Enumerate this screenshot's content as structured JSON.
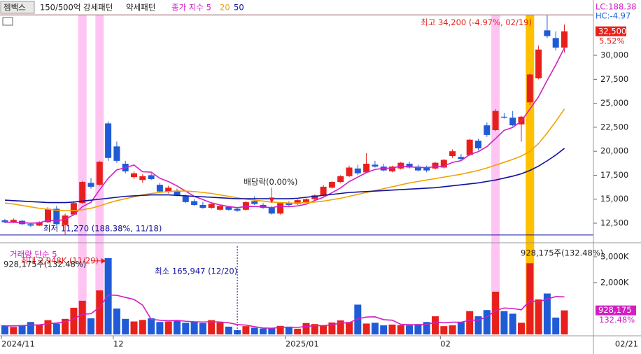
{
  "chart_data": {
    "type": "candlestick",
    "header": {
      "name": "젬백스",
      "pattern1": "150/500억 강세패턴",
      "pattern2": "약세패턴",
      "lc": "LC:188.38",
      "hc": "HC:-4.97"
    },
    "ma_series": [
      {
        "name": "종가 지수 5",
        "color": "#d21fc3",
        "values": [
          12600,
          12600,
          12550,
          12500,
          12540,
          12820,
          12730,
          12910,
          13380,
          14220,
          14680,
          15980,
          17180,
          18060,
          18280,
          18560,
          17860,
          17820,
          17180,
          16840,
          16380,
          15840,
          15300,
          14960,
          14620,
          14400,
          14240,
          14120,
          14240,
          14240,
          14200,
          14120,
          14280,
          14220,
          14300,
          14480,
          14860,
          15200,
          15680,
          16180,
          16840,
          17300,
          17780,
          18100,
          18220,
          18240,
          18460,
          18380,
          18300,
          18300,
          18380,
          18440,
          18840,
          19020,
          19660,
          19960,
          20480,
          21320,
          22180,
          22480,
          23140,
          24400,
          25680,
          27380,
          29000,
          30780
        ]
      },
      {
        "name": "20",
        "color": "#f0a400",
        "values": [
          14600,
          14500,
          14350,
          14200,
          14050,
          13950,
          13850,
          13800,
          13800,
          13900,
          14050,
          14300,
          14600,
          14850,
          15050,
          15250,
          15450,
          15600,
          15700,
          15800,
          15850,
          15850,
          15800,
          15700,
          15600,
          15450,
          15300,
          15150,
          15000,
          14900,
          14800,
          14700,
          14650,
          14600,
          14600,
          14650,
          14700,
          14800,
          14950,
          15100,
          15300,
          15500,
          15700,
          15900,
          16100,
          16300,
          16500,
          16700,
          16850,
          17000,
          17150,
          17300,
          17450,
          17600,
          17800,
          18000,
          18250,
          18550,
          18850,
          19150,
          19500,
          20000,
          20800,
          21900,
          23100,
          24400
        ]
      },
      {
        "name": "50",
        "color": "#10109e",
        "values": [
          14900,
          14850,
          14800,
          14750,
          14700,
          14650,
          14650,
          14650,
          14700,
          14800,
          14900,
          15000,
          15100,
          15200,
          15300,
          15350,
          15400,
          15450,
          15450,
          15450,
          15400,
          15350,
          15300,
          15250,
          15200,
          15150,
          15100,
          15050,
          15050,
          15050,
          15050,
          15050,
          15050,
          15050,
          15100,
          15200,
          15300,
          15400,
          15500,
          15600,
          15700,
          15750,
          15800,
          15850,
          15900,
          15950,
          16000,
          16050,
          16100,
          16150,
          16200,
          16300,
          16400,
          16500,
          16600,
          16700,
          16850,
          17000,
          17200,
          17400,
          17650,
          18000,
          18450,
          19000,
          19600,
          20300
        ]
      }
    ],
    "categories": [
      "2024/11",
      null,
      null,
      null,
      null,
      null,
      null,
      null,
      null,
      null,
      null,
      null,
      null,
      "12",
      null,
      null,
      null,
      null,
      null,
      null,
      null,
      null,
      null,
      null,
      null,
      null,
      null,
      null,
      null,
      null,
      null,
      null,
      null,
      "2025/01",
      null,
      null,
      null,
      null,
      null,
      null,
      null,
      null,
      null,
      null,
      null,
      null,
      null,
      null,
      null,
      null,
      null,
      "02",
      null,
      null,
      null,
      null,
      null,
      null,
      null,
      null,
      null,
      null,
      null,
      null,
      null,
      null
    ],
    "date_label": "02/21",
    "open": [
      12800,
      12600,
      12750,
      12400,
      12250,
      12600,
      14000,
      12300,
      13400,
      14600,
      16700,
      16500,
      22900,
      20500,
      18700,
      17300,
      17000,
      17500,
      16500,
      15800,
      15900,
      15300,
      14800,
      14400,
      14100,
      13900,
      14200,
      14000,
      13900,
      14800,
      14400,
      14100,
      13500,
      14600,
      14500,
      14700,
      15000,
      15400,
      16200,
      16800,
      17400,
      18200,
      17800,
      18600,
      18400,
      17900,
      18200,
      18700,
      18400,
      18300,
      18200,
      18300,
      19500,
      19400,
      19600,
      21100,
      22700,
      22200,
      23600,
      23500,
      22800,
      25100,
      27600,
      32600,
      31800,
      30800
    ],
    "high": [
      12950,
      13000,
      12850,
      12550,
      12700,
      14200,
      14300,
      13500,
      14800,
      16900,
      17200,
      19000,
      23100,
      21000,
      19000,
      17900,
      17600,
      17700,
      16700,
      16400,
      16100,
      15500,
      15000,
      14700,
      14600,
      14400,
      14300,
      14200,
      14800,
      15300,
      14600,
      14300,
      14700,
      14800,
      15000,
      15100,
      15500,
      16500,
      16900,
      17500,
      18500,
      18600,
      19800,
      19000,
      18700,
      18500,
      18900,
      18900,
      18600,
      18500,
      18900,
      19200,
      20200,
      19700,
      21300,
      21300,
      23000,
      24400,
      24000,
      24200,
      23700,
      28100,
      31000,
      34200,
      32500,
      33200
    ],
    "low": [
      12500,
      12500,
      12300,
      12100,
      12200,
      12500,
      12300,
      11270,
      13300,
      14500,
      16100,
      16400,
      19000,
      18800,
      17700,
      17100,
      16700,
      17000,
      15700,
      15600,
      15300,
      14600,
      14300,
      14000,
      14000,
      13800,
      13800,
      13700,
      13800,
      14400,
      14000,
      13400,
      13400,
      14300,
      14400,
      14600,
      14900,
      15300,
      16100,
      16700,
      17300,
      17500,
      17700,
      18300,
      17900,
      17800,
      18100,
      18200,
      17900,
      17800,
      18100,
      18200,
      19300,
      19000,
      19500,
      20100,
      21500,
      22100,
      23400,
      22600,
      21000,
      24800,
      27500,
      31800,
      30500,
      30300
    ],
    "close": [
      12600,
      12850,
      12400,
      12250,
      12600,
      14000,
      12400,
      13300,
      14600,
      16800,
      16300,
      18900,
      19300,
      19000,
      17900,
      17700,
      17400,
      17100,
      15800,
      16200,
      15400,
      14700,
      14400,
      14100,
      14500,
      14300,
      13900,
      13800,
      14700,
      14500,
      14100,
      13500,
      14600,
      14400,
      14900,
      15000,
      15400,
      16300,
      16800,
      17400,
      18300,
      17700,
      18700,
      18400,
      18000,
      18400,
      18800,
      18300,
      18000,
      18000,
      18800,
      19100,
      20000,
      19200,
      21200,
      20300,
      21700,
      24200,
      23500,
      22700,
      23600,
      28000,
      30600,
      32000,
      30800,
      32500
    ],
    "last_label": "32,500",
    "change_label": "5.52%",
    "up_color": "#e8201c",
    "down_color": "#1f5bd6",
    "ylim": [
      10970,
      34160
    ],
    "yticks": [
      {
        "value": 12500,
        "label": "12,500"
      },
      {
        "value": 15000,
        "label": "15,000"
      },
      {
        "value": 17500,
        "label": "17,500"
      },
      {
        "value": 20000,
        "label": "20,000"
      },
      {
        "value": 22500,
        "label": "22,500"
      },
      {
        "value": 25000,
        "label": "25,000"
      },
      {
        "value": 27500,
        "label": "27,500"
      },
      {
        "value": 30000,
        "label": "30,000"
      }
    ],
    "highlights": [
      {
        "index": 9,
        "color": "#ffc4f2"
      },
      {
        "index": 11,
        "color": "#ffc4f2"
      },
      {
        "index": 57,
        "color": "#ffc4f2"
      },
      {
        "index": 61,
        "color": "#ffc000"
      }
    ],
    "annotations": {
      "max": {
        "text": "최고 34,200 (-4.97%, 02/19)",
        "value": 34200
      },
      "min": {
        "text": "최저 11,270 (188.38%, 11/18)",
        "value": 11270
      },
      "dividend": {
        "text": "배당락(0.00%)",
        "index": 31
      }
    },
    "volume": {
      "values": [
        350,
        290,
        360,
        480,
        380,
        550,
        420,
        600,
        1030,
        1300,
        620,
        1700,
        2948,
        1000,
        600,
        500,
        560,
        620,
        480,
        500,
        520,
        450,
        500,
        440,
        550,
        460,
        300,
        165.947,
        320,
        260,
        230,
        250,
        330,
        300,
        220,
        440,
        400,
        350,
        460,
        540,
        480,
        1150,
        420,
        450,
        350,
        380,
        360,
        350,
        400,
        480,
        700,
        320,
        350,
        480,
        900,
        700,
        940,
        1650,
        900,
        800,
        450,
        2750,
        1350,
        1580,
        650,
        928.175
      ],
      "ylim": [
        0,
        3405
      ],
      "yticks": [
        {
          "value": 2000,
          "label": "2,000K"
        },
        {
          "value": 3000,
          "label": "3,000K"
        }
      ],
      "ma": {
        "name": "거래량 단순 5",
        "color": "#d21fc3",
        "values": [
          330,
          330,
          340,
          360,
          370,
          410,
          440,
          490,
          600,
          780,
          800,
          1050,
          1520,
          1510,
          1430,
          1350,
          1130,
          580,
          550,
          530,
          540,
          510,
          490,
          480,
          490,
          480,
          450,
          380,
          360,
          300,
          250,
          240,
          270,
          280,
          270,
          310,
          340,
          340,
          370,
          440,
          450,
          600,
          670,
          680,
          570,
          550,
          390,
          380,
          370,
          390,
          460,
          450,
          470,
          470,
          550,
          550,
          680,
          920,
          1020,
          1000,
          950,
          1310,
          1250,
          1370,
          1460,
          1450
        ]
      },
      "max_text": "최대 2,948K (11/29)",
      "max_index": 12,
      "min_text": "최소 165,947 (12/20)",
      "min_index": 27,
      "current_text": "928,175주(132.48%)",
      "last_label": "928,175",
      "ratio_label": "132.48%"
    }
  }
}
